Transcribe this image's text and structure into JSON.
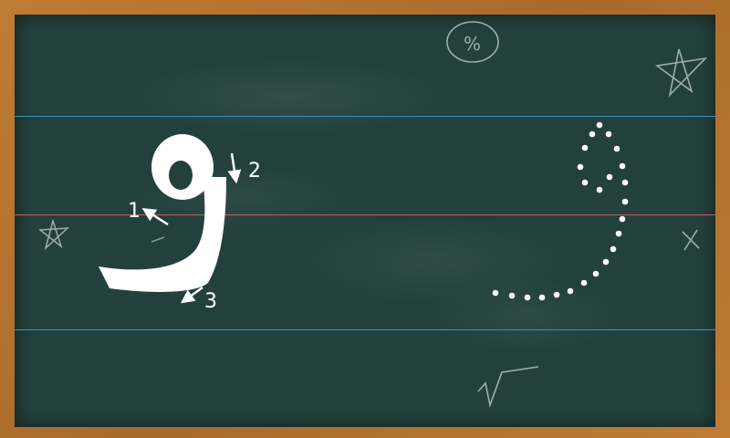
{
  "lesson": {
    "letter": "و",
    "letter_color": "#ffffff",
    "stroke_steps": [
      {
        "number": "1",
        "label": "1"
      },
      {
        "number": "2",
        "label": "2"
      },
      {
        "number": "3",
        "label": "3"
      }
    ]
  },
  "board": {
    "chalkboard_color": "#23403c",
    "frame_color": "#b5752f",
    "guide_line_color": "#3d8ec0",
    "midline_color": "#c45b67"
  },
  "doodles": {
    "percent_symbol": "%"
  }
}
